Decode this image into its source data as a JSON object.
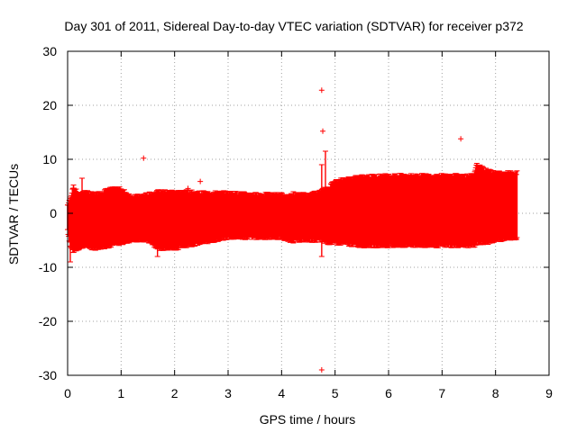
{
  "chart_data": {
    "type": "scatter",
    "title": "Day 301 of 2011, Sidereal Day-to-day VTEC variation (SDTVAR) for receiver p372",
    "xlabel": "GPS time / hours",
    "ylabel": "SDTVAR / TECUs",
    "xlim": [
      0,
      9
    ],
    "ylim": [
      -30,
      30
    ],
    "x_ticks": [
      0,
      1,
      2,
      3,
      4,
      5,
      6,
      7,
      8,
      9
    ],
    "y_ticks": [
      -30,
      -20,
      -10,
      0,
      10,
      20,
      30
    ],
    "grid": true,
    "marker": "+",
    "color": "#ff0000",
    "series": [
      {
        "name": "SDTVAR",
        "band_envelope": [
          {
            "x": 0.0,
            "lo": -3.0,
            "hi": 1.5
          },
          {
            "x": 0.05,
            "lo": -6.0,
            "hi": 2.5
          },
          {
            "x": 0.1,
            "lo": -7.0,
            "hi": 5.0
          },
          {
            "x": 0.2,
            "lo": -6.5,
            "hi": 3.5
          },
          {
            "x": 0.3,
            "lo": -6.0,
            "hi": 4.0
          },
          {
            "x": 0.5,
            "lo": -6.5,
            "hi": 3.5
          },
          {
            "x": 0.8,
            "lo": -6.0,
            "hi": 4.5
          },
          {
            "x": 1.0,
            "lo": -5.5,
            "hi": 4.5
          },
          {
            "x": 1.2,
            "lo": -5.0,
            "hi": 3.0
          },
          {
            "x": 1.5,
            "lo": -5.0,
            "hi": 3.5
          },
          {
            "x": 1.7,
            "lo": -6.5,
            "hi": 4.0
          },
          {
            "x": 2.0,
            "lo": -6.5,
            "hi": 4.0
          },
          {
            "x": 2.2,
            "lo": -6.0,
            "hi": 4.0
          },
          {
            "x": 2.5,
            "lo": -5.5,
            "hi": 3.8
          },
          {
            "x": 3.0,
            "lo": -4.5,
            "hi": 3.8
          },
          {
            "x": 3.5,
            "lo": -4.5,
            "hi": 3.5
          },
          {
            "x": 4.0,
            "lo": -4.5,
            "hi": 3.5
          },
          {
            "x": 4.1,
            "lo": -5.0,
            "hi": 3.0
          },
          {
            "x": 4.25,
            "lo": -5.0,
            "hi": 3.5
          },
          {
            "x": 4.5,
            "lo": -5.0,
            "hi": 3.5
          },
          {
            "x": 4.7,
            "lo": -5.0,
            "hi": 4.0
          },
          {
            "x": 4.9,
            "lo": -5.5,
            "hi": 5.0
          },
          {
            "x": 5.0,
            "lo": -5.5,
            "hi": 6.0
          },
          {
            "x": 5.5,
            "lo": -6.0,
            "hi": 6.8
          },
          {
            "x": 6.0,
            "lo": -6.0,
            "hi": 7.0
          },
          {
            "x": 7.0,
            "lo": -6.0,
            "hi": 7.0
          },
          {
            "x": 7.6,
            "lo": -6.0,
            "hi": 7.0
          },
          {
            "x": 7.65,
            "lo": -5.5,
            "hi": 9.0
          },
          {
            "x": 7.8,
            "lo": -5.5,
            "hi": 8.0
          },
          {
            "x": 8.0,
            "lo": -5.0,
            "hi": 7.5
          },
          {
            "x": 8.4,
            "lo": -4.5,
            "hi": 7.5
          }
        ],
        "spikes": [
          {
            "x": 0.05,
            "lo": -9.0,
            "hi": 3.0
          },
          {
            "x": 0.27,
            "lo": -6.0,
            "hi": 6.5
          },
          {
            "x": 1.68,
            "lo": -8.0,
            "hi": 4.0
          },
          {
            "x": 4.22,
            "lo": -5.5,
            "hi": 4.0
          },
          {
            "x": 4.75,
            "lo": -8.0,
            "hi": 9.0
          },
          {
            "x": 4.82,
            "lo": -5.0,
            "hi": 11.5
          }
        ],
        "outliers": [
          {
            "x": 1.42,
            "y": 10.2
          },
          {
            "x": 2.25,
            "y": 4.6
          },
          {
            "x": 2.48,
            "y": 5.9
          },
          {
            "x": 4.75,
            "y": 22.8
          },
          {
            "x": 4.77,
            "y": 15.2
          },
          {
            "x": 4.75,
            "y": -29.0
          },
          {
            "x": 7.35,
            "y": 13.8
          }
        ]
      }
    ]
  }
}
